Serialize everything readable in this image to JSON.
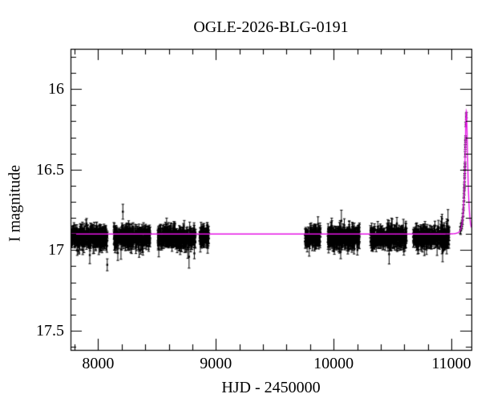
{
  "chart_data": {
    "type": "scatter",
    "title": "OGLE-2026-BLG-0191",
    "xlabel": "HJD - 2450000",
    "ylabel": "I magnitude",
    "xlim": [
      7766,
      11170
    ],
    "ylim": [
      17.62,
      15.75
    ],
    "y_axis_inverted_magnitude": true,
    "grid": false,
    "x_major_ticks": [
      8000,
      9000,
      10000,
      11000
    ],
    "x_tick_labels": [
      "8000",
      "9000",
      "10000",
      "11000"
    ],
    "x_minor_step": 200,
    "y_major_ticks": [
      16,
      16.5,
      17,
      17.5
    ],
    "y_tick_labels": [
      "16",
      "16.5",
      "17",
      "17.5"
    ],
    "y_minor_step": 0.1,
    "marker": {
      "shape": "square-dot-with-errorbar",
      "color": "#000000",
      "size": 2.4
    },
    "baseline_mag": 16.92,
    "peak_mag": 16.15,
    "model_curve": {
      "type": "paczynski_microlensing",
      "color": "#e515e5",
      "I0": 16.9,
      "t0": 11127,
      "tE": 19,
      "u0": 0.55,
      "peak_model_mag": 16.14
    },
    "seasons": [
      {
        "hjd_range": [
          7766,
          8079
        ],
        "n": 330,
        "mag_mean": 16.92,
        "mag_sigma": 0.028,
        "err_typ": 0.03
      },
      {
        "hjd_range": [
          8134,
          8443
        ],
        "n": 330,
        "mag_mean": 16.92,
        "mag_sigma": 0.028,
        "err_typ": 0.03
      },
      {
        "hjd_range": [
          8508,
          8828
        ],
        "n": 340,
        "mag_mean": 16.92,
        "mag_sigma": 0.03,
        "err_typ": 0.03
      },
      {
        "hjd_range": [
          8862,
          8940
        ],
        "n": 80,
        "mag_mean": 16.92,
        "mag_sigma": 0.028,
        "err_typ": 0.03
      },
      {
        "hjd_range": [
          9757,
          9890
        ],
        "n": 130,
        "mag_mean": 16.92,
        "mag_sigma": 0.028,
        "err_typ": 0.03
      },
      {
        "hjd_range": [
          9951,
          10220
        ],
        "n": 290,
        "mag_mean": 16.92,
        "mag_sigma": 0.029,
        "err_typ": 0.03
      },
      {
        "hjd_range": [
          10312,
          10618
        ],
        "n": 330,
        "mag_mean": 16.92,
        "mag_sigma": 0.029,
        "err_typ": 0.03
      },
      {
        "hjd_range": [
          10676,
          10982
        ],
        "n": 330,
        "mag_mean": 16.92,
        "mag_sigma": 0.029,
        "err_typ": 0.03
      }
    ],
    "event_points": [
      [
        11076,
        16.88
      ],
      [
        11079,
        16.87
      ],
      [
        11082,
        16.86
      ],
      [
        11085,
        16.855
      ],
      [
        11088,
        16.85
      ],
      [
        11091,
        16.83
      ],
      [
        11094,
        16.82
      ],
      [
        11097,
        16.79
      ],
      [
        11100,
        16.77
      ],
      [
        11103,
        16.73
      ],
      [
        11106,
        16.7
      ],
      [
        11107,
        16.67
      ],
      [
        11109,
        16.63
      ],
      [
        11110,
        16.62
      ],
      [
        11111,
        16.59
      ],
      [
        11112,
        16.56
      ],
      [
        11113,
        16.53
      ],
      [
        11114,
        16.51
      ],
      [
        11115,
        16.48
      ],
      [
        11116,
        16.45
      ],
      [
        11117,
        16.4
      ],
      [
        11118,
        16.37
      ],
      [
        11119,
        16.33
      ],
      [
        11120,
        16.3
      ],
      [
        11122,
        16.22
      ],
      [
        11125.5,
        16.16
      ],
      [
        11128.5,
        16.15
      ]
    ],
    "colors": {
      "background": "#ffffff",
      "frame": "#000000",
      "data_points": "#000000",
      "model_curve": "#e515e5",
      "text": "#000000"
    }
  }
}
